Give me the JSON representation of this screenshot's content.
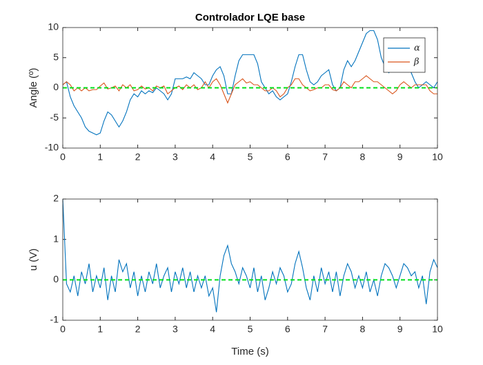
{
  "chart_data": [
    {
      "type": "line",
      "title": "Controlador LQE base",
      "ylabel": "Angle (º)",
      "xlim": [
        0,
        10
      ],
      "ylim": [
        -10,
        10
      ],
      "xticks": [
        0,
        1,
        2,
        3,
        4,
        5,
        6,
        7,
        8,
        9,
        10
      ],
      "yticks": [
        -10,
        -5,
        0,
        5,
        10
      ],
      "legend": "northeast",
      "hlines": [
        {
          "y": 0,
          "color": "#00e01a",
          "style": "dashed"
        }
      ],
      "x": [
        0,
        0.1,
        0.2,
        0.3,
        0.4,
        0.5,
        0.6,
        0.7,
        0.8,
        0.9,
        1,
        1.1,
        1.2,
        1.3,
        1.4,
        1.5,
        1.6,
        1.7,
        1.8,
        1.9,
        2,
        2.1,
        2.2,
        2.3,
        2.4,
        2.5,
        2.6,
        2.7,
        2.8,
        2.9,
        3,
        3.1,
        3.2,
        3.3,
        3.4,
        3.5,
        3.6,
        3.7,
        3.8,
        3.9,
        4,
        4.1,
        4.2,
        4.3,
        4.4,
        4.5,
        4.6,
        4.7,
        4.8,
        4.9,
        5,
        5.1,
        5.2,
        5.3,
        5.4,
        5.5,
        5.6,
        5.7,
        5.8,
        5.9,
        6,
        6.1,
        6.2,
        6.3,
        6.4,
        6.5,
        6.6,
        6.7,
        6.8,
        6.9,
        7,
        7.1,
        7.2,
        7.3,
        7.4,
        7.5,
        7.6,
        7.7,
        7.8,
        7.9,
        8,
        8.1,
        8.2,
        8.3,
        8.4,
        8.5,
        8.6,
        8.7,
        8.8,
        8.9,
        9,
        9.1,
        9.2,
        9.3,
        9.4,
        9.5,
        9.6,
        9.7,
        9.8,
        9.9,
        10
      ],
      "series": [
        {
          "name": "α",
          "color": "#0072bd",
          "values": [
            0.5,
            1,
            -1.5,
            -3,
            -4,
            -5,
            -6.5,
            -7.2,
            -7.5,
            -7.8,
            -7.5,
            -5.5,
            -4,
            -4.5,
            -5.5,
            -6.5,
            -5.5,
            -4,
            -2,
            -1,
            -1.5,
            -0.5,
            -1,
            -0.5,
            -0.8,
            0,
            -0.5,
            -1,
            -2,
            -1,
            1.5,
            1.5,
            1.5,
            1.8,
            1.5,
            2.5,
            2,
            1.5,
            0.5,
            0.5,
            2,
            3,
            3.5,
            2,
            -1,
            -1,
            2,
            4.5,
            5.5,
            5.5,
            5.5,
            5.5,
            4,
            1,
            0,
            -1,
            -0.5,
            -1.5,
            -2,
            -1.5,
            -1,
            1,
            3.5,
            5.5,
            5.5,
            3,
            1,
            0.5,
            1,
            2,
            2.5,
            3,
            0.5,
            -0.5,
            0,
            3,
            4.5,
            3.5,
            4.5,
            6,
            7.5,
            9,
            9.5,
            9.5,
            8,
            5,
            3.5,
            2.5,
            3,
            3.5,
            4.5,
            5.5,
            4,
            2.5,
            1,
            0,
            0.5,
            1,
            0.5,
            0,
            1
          ]
        },
        {
          "name": "β",
          "color": "#d95319",
          "values": [
            0.5,
            1,
            0.5,
            -0.5,
            0,
            -0.5,
            0,
            -0.5,
            -0.3,
            -0.3,
            0.3,
            0.8,
            -0.2,
            0,
            0.3,
            -0.5,
            0.5,
            0,
            0.5,
            -0.5,
            -0.3,
            0.3,
            -0.2,
            0,
            -0.5,
            0.3,
            0,
            0.3,
            -1,
            -0.5,
            0,
            0.3,
            -0.3,
            0.5,
            0,
            0.5,
            -0.3,
            0,
            1,
            0,
            1,
            1.5,
            0.5,
            -1,
            -2.5,
            -1,
            0.5,
            1,
            1.5,
            0.8,
            1,
            0.5,
            0.5,
            0,
            -0.5,
            -0.5,
            0,
            -0.5,
            -1.5,
            -1,
            0,
            0.5,
            1.5,
            1.5,
            0.5,
            0,
            -0.5,
            -0.3,
            0,
            0,
            0.5,
            0.5,
            -0.3,
            -0.5,
            0,
            1,
            0.5,
            0,
            1,
            1,
            1.5,
            2,
            1.5,
            1,
            1,
            0.5,
            0,
            -0.5,
            -1,
            -0.5,
            0.5,
            1,
            0.5,
            0,
            0.5,
            0.5,
            0.5,
            0.5,
            -0.5,
            -1,
            -1
          ]
        }
      ]
    },
    {
      "type": "line",
      "ylabel": "u (V)",
      "xlabel": "Time (s)",
      "xlim": [
        0,
        10
      ],
      "ylim": [
        -1,
        2
      ],
      "xticks": [
        0,
        1,
        2,
        3,
        4,
        5,
        6,
        7,
        8,
        9,
        10
      ],
      "yticks": [
        -1,
        0,
        1,
        2
      ],
      "hlines": [
        {
          "y": 0,
          "color": "#00e01a",
          "style": "dashed"
        }
      ],
      "x": [
        0,
        0.1,
        0.2,
        0.3,
        0.4,
        0.5,
        0.6,
        0.7,
        0.8,
        0.9,
        1,
        1.1,
        1.2,
        1.3,
        1.4,
        1.5,
        1.6,
        1.7,
        1.8,
        1.9,
        2,
        2.1,
        2.2,
        2.3,
        2.4,
        2.5,
        2.6,
        2.7,
        2.8,
        2.9,
        3,
        3.1,
        3.2,
        3.3,
        3.4,
        3.5,
        3.6,
        3.7,
        3.8,
        3.9,
        4,
        4.1,
        4.2,
        4.3,
        4.4,
        4.5,
        4.6,
        4.7,
        4.8,
        4.9,
        5,
        5.1,
        5.2,
        5.3,
        5.4,
        5.5,
        5.6,
        5.7,
        5.8,
        5.9,
        6,
        6.1,
        6.2,
        6.3,
        6.4,
        6.5,
        6.6,
        6.7,
        6.8,
        6.9,
        7,
        7.1,
        7.2,
        7.3,
        7.4,
        7.5,
        7.6,
        7.7,
        7.8,
        7.9,
        8,
        8.1,
        8.2,
        8.3,
        8.4,
        8.5,
        8.6,
        8.7,
        8.8,
        8.9,
        9,
        9.1,
        9.2,
        9.3,
        9.4,
        9.5,
        9.6,
        9.7,
        9.8,
        9.9,
        10
      ],
      "series": [
        {
          "color": "#0072bd",
          "values": [
            2,
            -0.1,
            -0.3,
            0.1,
            -0.4,
            0.2,
            -0.1,
            0.4,
            -0.3,
            0.1,
            -0.2,
            0.3,
            -0.5,
            0.1,
            -0.3,
            0.5,
            0.2,
            0.4,
            -0.2,
            0.2,
            -0.4,
            0.1,
            -0.3,
            0.2,
            -0.1,
            0.4,
            -0.2,
            0.1,
            0.3,
            -0.3,
            0.2,
            -0.1,
            0.3,
            -0.2,
            0.2,
            -0.3,
            0.1,
            -0.2,
            0.1,
            -0.4,
            -0.2,
            -0.8,
            0.1,
            0.6,
            0.85,
            0.4,
            0.2,
            -0.1,
            0.3,
            0.1,
            -0.2,
            0.3,
            -0.3,
            0.1,
            -0.5,
            -0.2,
            0.2,
            -0.1,
            0.3,
            0.1,
            -0.3,
            -0.1,
            0.4,
            0.7,
            0.3,
            -0.2,
            -0.5,
            0.1,
            -0.3,
            0.3,
            -0.1,
            0.2,
            -0.3,
            0.2,
            -0.4,
            0.1,
            0.4,
            0.2,
            -0.2,
            0.1,
            -0.2,
            0.2,
            -0.3,
            0,
            -0.4,
            0.1,
            0.4,
            0.3,
            0.1,
            -0.2,
            0.1,
            0.4,
            0.3,
            0.1,
            0.2,
            -0.2,
            0.1,
            -0.6,
            0.2,
            0.5,
            0.3
          ]
        }
      ]
    }
  ]
}
